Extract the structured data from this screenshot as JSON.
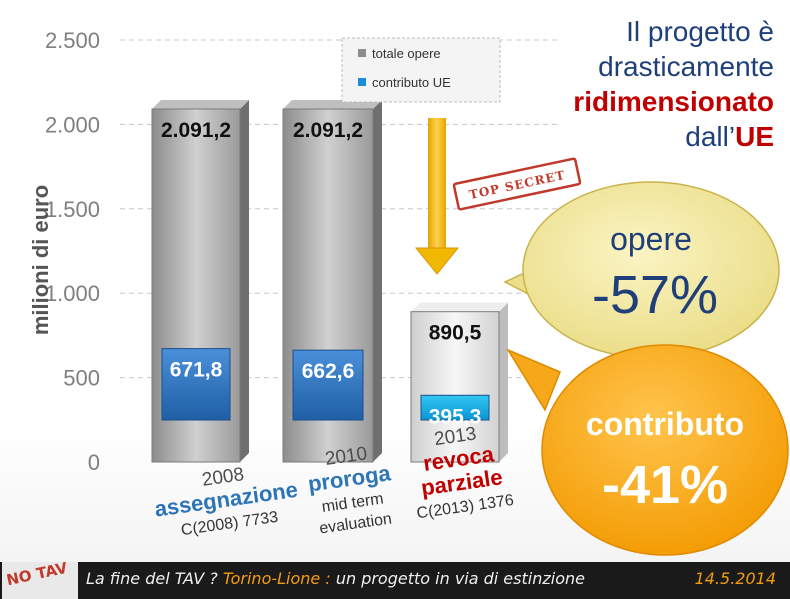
{
  "title": {
    "line1": "Il progetto è",
    "line2": "drasticamente",
    "line3": "ridimensionato",
    "line4_pre": "dall’",
    "line4_highlight": "UE"
  },
  "chart_data": {
    "type": "bar",
    "ylabel": "milioni di euro",
    "ylim": [
      0,
      2500
    ],
    "yticks": [
      0,
      500,
      1000,
      1500,
      2000,
      2500
    ],
    "ytick_labels": [
      "0",
      "500",
      "1.000",
      "1.500",
      "2.000",
      "2.500"
    ],
    "grid": true,
    "legend_position": "top",
    "categories": [
      {
        "year": "2008",
        "main": "assegnazione",
        "main_color": "#2e75b6",
        "sub": [
          "C(2008) 7733"
        ]
      },
      {
        "year": "2010",
        "main": "proroga",
        "main_color": "#2e75b6",
        "sub": [
          "mid term",
          "evaluation"
        ]
      },
      {
        "year": "2013",
        "main_lines": [
          "revoca",
          "parziale"
        ],
        "main_color": "#c00000",
        "sub": [
          "C(2013) 1376"
        ]
      }
    ],
    "series": [
      {
        "name": "totale opere",
        "values": [
          2091.2,
          2091.2,
          890.5
        ],
        "labels": [
          "2.091,2",
          "2.091,2",
          "890,5"
        ],
        "color": "#a6a6a6"
      },
      {
        "name": "contributo UE",
        "values": [
          671.8,
          662.6,
          395.3
        ],
        "labels": [
          "671,8",
          "662,6",
          "395,3"
        ],
        "color": "#2e75b6"
      }
    ]
  },
  "stamp": "TOP SECRET",
  "callouts": {
    "opere": {
      "label": "opere",
      "value": "-57%"
    },
    "contributo": {
      "label": "contributo",
      "value": "-41%"
    }
  },
  "footer": {
    "logo": "NO TAV",
    "text_1": "La fine del TAV ?",
    "text_accent": "Torino-Lione :",
    "text_2": "un progetto in via di estinzione",
    "date": "14.5.2014"
  }
}
